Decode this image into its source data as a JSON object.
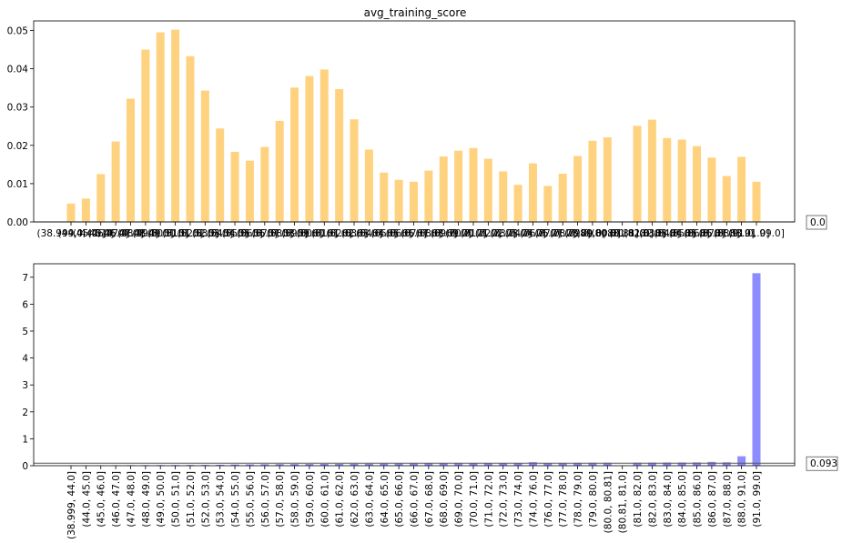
{
  "chart_data": [
    {
      "type": "bar",
      "title": "avg_training_score",
      "categories": [
        "(38.999, 44.0]",
        "(44.0, 45.0]",
        "(45.0, 46.0]",
        "(46.0, 47.0]",
        "(47.0, 48.0]",
        "(48.0, 49.0]",
        "(49.0, 50.0]",
        "(50.0, 51.0]",
        "(51.0, 52.0]",
        "(52.0, 53.0]",
        "(53.0, 54.0]",
        "(54.0, 55.0]",
        "(55.0, 56.0]",
        "(56.0, 57.0]",
        "(57.0, 58.0]",
        "(58.0, 59.0]",
        "(59.0, 60.0]",
        "(60.0, 61.0]",
        "(61.0, 62.0]",
        "(62.0, 63.0]",
        "(63.0, 64.0]",
        "(64.0, 65.0]",
        "(65.0, 66.0]",
        "(66.0, 67.0]",
        "(67.0, 68.0]",
        "(68.0, 69.0]",
        "(69.0, 70.0]",
        "(70.0, 71.0]",
        "(71.0, 72.0]",
        "(72.0, 73.0]",
        "(73.0, 74.0]",
        "(74.0, 76.0]",
        "(76.0, 77.0]",
        "(77.0, 78.0]",
        "(78.0, 79.0]",
        "(79.0, 80.0]",
        "(80.0, 80.81]",
        "(80.81, 81.0]",
        "(81.0, 82.0]",
        "(82.0, 83.0]",
        "(83.0, 84.0]",
        "(84.0, 85.0]",
        "(85.0, 86.0]",
        "(86.0, 87.0]",
        "(87.0, 88.0]",
        "(88.0, 91.0]",
        "(91.0, 99.0]"
      ],
      "values": [
        0.0048,
        0.0061,
        0.0125,
        0.021,
        0.0322,
        0.045,
        0.0495,
        0.0502,
        0.0433,
        0.0343,
        0.0244,
        0.0183,
        0.016,
        0.0196,
        0.0264,
        0.0351,
        0.0381,
        0.0398,
        0.0347,
        0.0268,
        0.0189,
        0.0129,
        0.011,
        0.0105,
        0.0134,
        0.0171,
        0.0186,
        0.0193,
        0.0165,
        0.0132,
        0.0097,
        0.0153,
        0.0094,
        0.0126,
        0.0172,
        0.0212,
        0.0221,
        0.0,
        0.0251,
        0.0267,
        0.0219,
        0.0215,
        0.0198,
        0.0168,
        0.012,
        0.017,
        0.0105
      ],
      "color": "#ffb732",
      "ylim": [
        0,
        0.0525
      ],
      "yticks": [
        "0.00",
        "0.01",
        "0.02",
        "0.03",
        "0.04",
        "0.05"
      ],
      "ytick_values": [
        0,
        0.01,
        0.02,
        0.03,
        0.04,
        0.05
      ],
      "reference_line": 0.0,
      "reference_label": "0.0",
      "xtick_rotation": "horizontal"
    },
    {
      "type": "bar",
      "title": "",
      "categories": [
        "(38.999, 44.0]",
        "(44.0, 45.0]",
        "(45.0, 46.0]",
        "(46.0, 47.0]",
        "(47.0, 48.0]",
        "(48.0, 49.0]",
        "(49.0, 50.0]",
        "(50.0, 51.0]",
        "(51.0, 52.0]",
        "(52.0, 53.0]",
        "(53.0, 54.0]",
        "(54.0, 55.0]",
        "(55.0, 56.0]",
        "(56.0, 57.0]",
        "(57.0, 58.0]",
        "(58.0, 59.0]",
        "(59.0, 60.0]",
        "(60.0, 61.0]",
        "(61.0, 62.0]",
        "(62.0, 63.0]",
        "(63.0, 64.0]",
        "(64.0, 65.0]",
        "(65.0, 66.0]",
        "(66.0, 67.0]",
        "(67.0, 68.0]",
        "(68.0, 69.0]",
        "(69.0, 70.0]",
        "(70.0, 71.0]",
        "(71.0, 72.0]",
        "(72.0, 73.0]",
        "(73.0, 74.0]",
        "(74.0, 76.0]",
        "(76.0, 77.0]",
        "(77.0, 78.0]",
        "(78.0, 79.0]",
        "(79.0, 80.0]",
        "(80.0, 80.81]",
        "(80.81, 81.0]",
        "(81.0, 82.0]",
        "(82.0, 83.0]",
        "(83.0, 84.0]",
        "(84.0, 85.0]",
        "(85.0, 86.0]",
        "(86.0, 87.0]",
        "(87.0, 88.0]",
        "(88.0, 91.0]",
        "(91.0, 99.0]"
      ],
      "values": [
        0.012,
        0.014,
        0.016,
        0.018,
        0.02,
        0.022,
        0.024,
        0.026,
        0.028,
        0.03,
        0.035,
        0.045,
        0.05,
        0.055,
        0.06,
        0.062,
        0.065,
        0.068,
        0.07,
        0.072,
        0.075,
        0.078,
        0.08,
        0.082,
        0.084,
        0.086,
        0.088,
        0.09,
        0.092,
        0.095,
        0.098,
        0.13,
        0.1,
        0.102,
        0.105,
        0.108,
        0.11,
        0.0,
        0.112,
        0.115,
        0.118,
        0.12,
        0.122,
        0.14,
        0.125,
        0.35,
        7.15
      ],
      "color": "#8080ff",
      "ylim": [
        0,
        7.5
      ],
      "yticks": [
        "0",
        "1",
        "2",
        "3",
        "4",
        "5",
        "6",
        "7"
      ],
      "ytick_values": [
        0,
        1,
        2,
        3,
        4,
        5,
        6,
        7
      ],
      "reference_line": 0.093,
      "reference_label": "0.093",
      "xtick_rotation": "vertical"
    }
  ]
}
